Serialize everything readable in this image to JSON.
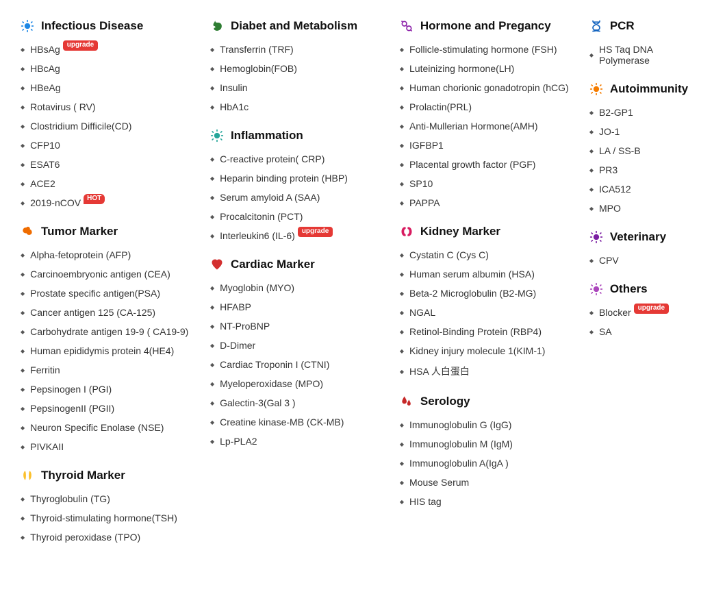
{
  "badge_colors": {
    "upgrade": "#e53935",
    "hot": "#e53935"
  },
  "columns": [
    {
      "sections": [
        {
          "key": "infectious",
          "title": "Infectious Disease",
          "icon": "virus",
          "icon_color": "#1e88e5",
          "items": [
            {
              "label": "HBsAg",
              "badge": "upgrade"
            },
            {
              "label": "HBcAg"
            },
            {
              "label": "HBeAg"
            },
            {
              "label": "Rotavirus ( RV)"
            },
            {
              "label": "Clostridium Difficile(CD)"
            },
            {
              "label": "CFP10"
            },
            {
              "label": "ESAT6"
            },
            {
              "label": "ACE2"
            },
            {
              "label": "2019-nCOV",
              "badge": "HOT",
              "badge_type": "hot"
            }
          ]
        },
        {
          "key": "tumor",
          "title": "Tumor Marker",
          "icon": "tumor",
          "icon_color": "#ef6c00",
          "items": [
            {
              "label": "Alpha-fetoprotein (AFP)"
            },
            {
              "label": "Carcinoembryonic antigen (CEA)"
            },
            {
              "label": "Prostate specific antigen(PSA)"
            },
            {
              "label": "Cancer antigen 125 (CA-125)"
            },
            {
              "label": "Carbohydrate antigen 19-9 ( CA19-9)"
            },
            {
              "label": "Human epididymis protein 4(HE4)"
            },
            {
              "label": "Ferritin"
            },
            {
              "label": "Pepsinogen I (PGI)"
            },
            {
              "label": "PepsinogenII (PGII)"
            },
            {
              "label": "Neuron Specific Enolase (NSE)"
            },
            {
              "label": "PIVKAII"
            }
          ]
        },
        {
          "key": "thyroid",
          "title": "Thyroid Marker",
          "icon": "thyroid",
          "icon_color": "#fbc02d",
          "items": [
            {
              "label": "Thyroglobulin (TG)"
            },
            {
              "label": "Thyroid-stimulating hormone(TSH)"
            },
            {
              "label": "Thyroid peroxidase (TPO)"
            }
          ]
        }
      ]
    },
    {
      "sections": [
        {
          "key": "diabet",
          "title": "Diabet and Metabolism",
          "icon": "stomach",
          "icon_color": "#2e7d32",
          "items": [
            {
              "label": "Transferrin (TRF)"
            },
            {
              "label": "Hemoglobin(FOB)"
            },
            {
              "label": "Insulin"
            },
            {
              "label": "HbA1c"
            }
          ]
        },
        {
          "key": "inflammation",
          "title": "Inflammation",
          "icon": "virus2",
          "icon_color": "#26a69a",
          "items": [
            {
              "label": "C-reactive protein( CRP)"
            },
            {
              "label": "Heparin binding protein (HBP)"
            },
            {
              "label": "Serum amyloid A (SAA)"
            },
            {
              "label": "Procalcitonin (PCT)"
            },
            {
              "label": "Interleukin6 (IL-6)",
              "badge": "upgrade"
            }
          ]
        },
        {
          "key": "cardiac",
          "title": "Cardiac Marker",
          "icon": "heart",
          "icon_color": "#d32f2f",
          "items": [
            {
              "label": "Myoglobin (MYO)"
            },
            {
              "label": "HFABP"
            },
            {
              "label": "NT-ProBNP"
            },
            {
              "label": "D-Dimer"
            },
            {
              "label": "Cardiac Troponin I (CTNI)"
            },
            {
              "label": "Myeloperoxidase (MPO)"
            },
            {
              "label": "Galectin-3(Gal 3 )"
            },
            {
              "label": "Creatine kinase-MB (CK-MB)"
            },
            {
              "label": "Lp-PLA2"
            }
          ]
        }
      ]
    },
    {
      "sections": [
        {
          "key": "hormone",
          "title": "Hormone and Pregancy",
          "icon": "hormone",
          "icon_color": "#8e24aa",
          "items": [
            {
              "label": "Follicle-stimulating hormone (FSH)"
            },
            {
              "label": "Luteinizing hormone(LH)"
            },
            {
              "label": "Human chorionic gonadotropin (hCG)"
            },
            {
              "label": "Prolactin(PRL)"
            },
            {
              "label": "Anti-Mullerian Hormone(AMH)"
            },
            {
              "label": "IGFBP1"
            },
            {
              "label": "Placental growth factor (PGF)"
            },
            {
              "label": "SP10"
            },
            {
              "label": "PAPPA"
            }
          ]
        },
        {
          "key": "kidney",
          "title": "Kidney Marker",
          "icon": "kidney",
          "icon_color": "#d81b60",
          "items": [
            {
              "label": "Cystatin C (Cys C)"
            },
            {
              "label": "Human serum albumin (HSA)"
            },
            {
              "label": "Beta-2 Microglobulin (B2-MG)"
            },
            {
              "label": "NGAL"
            },
            {
              "label": "Retinol-Binding Protein (RBP4)"
            },
            {
              "label": "Kidney injury molecule 1(KIM-1)"
            },
            {
              "label": "HSA 人白蛋白"
            }
          ]
        },
        {
          "key": "serology",
          "title": "Serology",
          "icon": "blood",
          "icon_color": "#c62828",
          "items": [
            {
              "label": "Immunoglobulin G (IgG)"
            },
            {
              "label": "Immunoglobulin M (IgM)"
            },
            {
              "label": "Immunoglobulin A(IgA )"
            },
            {
              "label": "Mouse Serum"
            },
            {
              "label": "HIS tag"
            }
          ]
        }
      ]
    },
    {
      "sections": [
        {
          "key": "pcr",
          "title": "PCR",
          "icon": "dna",
          "icon_color": "#1565c0",
          "items": [
            {
              "label": "HS Taq DNA Polymerase"
            }
          ]
        },
        {
          "key": "autoimmunity",
          "title": "Autoimmunity",
          "icon": "immune",
          "icon_color": "#f57c00",
          "items": [
            {
              "label": "B2-GP1"
            },
            {
              "label": "JO-1"
            },
            {
              "label": "LA / SS-B"
            },
            {
              "label": "PR3"
            },
            {
              "label": "ICA512"
            },
            {
              "label": "MPO"
            }
          ]
        },
        {
          "key": "veterinary",
          "title": "Veterinary",
          "icon": "virus3",
          "icon_color": "#7b1fa2",
          "items": [
            {
              "label": "CPV"
            }
          ]
        },
        {
          "key": "others",
          "title": "Others",
          "icon": "virus4",
          "icon_color": "#ab47bc",
          "items": [
            {
              "label": "Blocker",
              "badge": "upgrade"
            },
            {
              "label": "SA"
            }
          ]
        }
      ]
    }
  ]
}
